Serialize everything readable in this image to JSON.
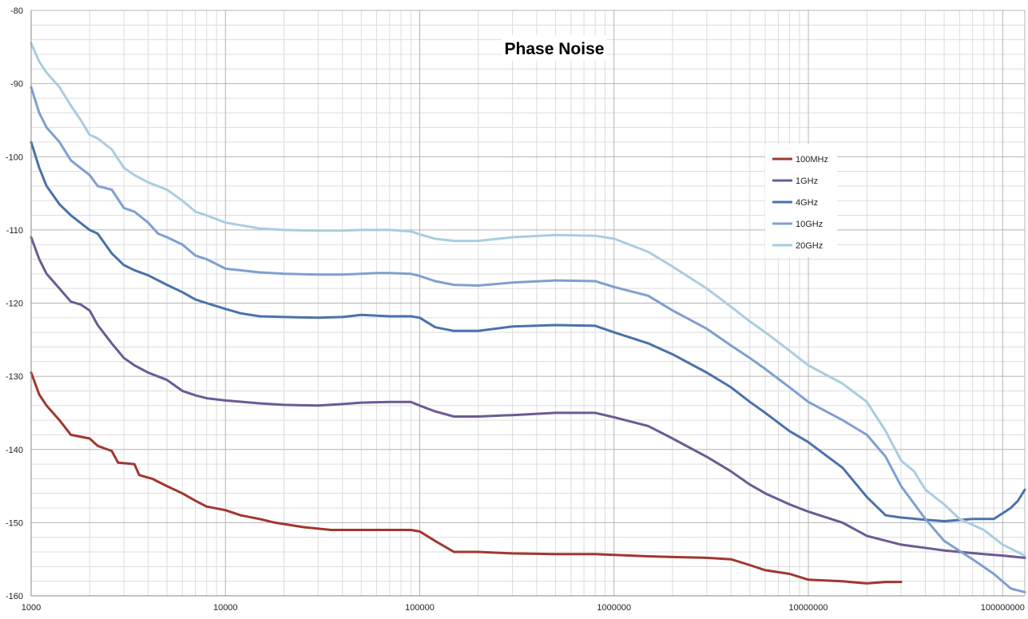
{
  "chart_data": {
    "type": "line",
    "title": "Phase Noise",
    "xlabel": "",
    "ylabel": "",
    "xscale": "log",
    "xlim": [
      1000,
      130000000
    ],
    "ylim": [
      -160,
      -80
    ],
    "x_ticks": [
      1000,
      10000,
      100000,
      1000000,
      10000000,
      100000000
    ],
    "x_tick_labels": [
      "1000",
      "10000",
      "100000",
      "1000000",
      "10000000",
      "100000000"
    ],
    "y_ticks": [
      -160,
      -150,
      -140,
      -130,
      -120,
      -110,
      -100,
      -90,
      -80
    ],
    "grid": true,
    "legend_position": "right",
    "series": [
      {
        "name": "100MHz",
        "color": "#a0372f",
        "x": [
          1000,
          1100,
          1200,
          1400,
          1600,
          2000,
          2200,
          2600,
          2800,
          3400,
          3600,
          4200,
          5000,
          6000,
          7000,
          8000,
          10000,
          12000,
          15000,
          18000,
          25000,
          35000,
          50000,
          70000,
          90000,
          100000,
          120000,
          150000,
          200000,
          300000,
          500000,
          800000,
          1000000,
          1500000,
          2000000,
          3000000,
          4000000,
          5000000,
          6000000,
          8000000,
          10000000,
          15000000,
          18000000,
          20000000,
          25000000,
          30000000
        ],
        "y": [
          -129.5,
          -132.5,
          -134,
          -136,
          -138,
          -138.5,
          -139.5,
          -140.2,
          -141.8,
          -142,
          -143.5,
          -144,
          -145,
          -146,
          -147,
          -147.8,
          -148.3,
          -149,
          -149.5,
          -150,
          -150.6,
          -151,
          -151,
          -151,
          -151,
          -151.2,
          -152.5,
          -154,
          -154,
          -154.2,
          -154.3,
          -154.3,
          -154.4,
          -154.6,
          -154.7,
          -154.8,
          -155,
          -155.8,
          -156.5,
          -157,
          -157.8,
          -158,
          -158.2,
          -158.3,
          -158.1,
          -158.1
        ]
      },
      {
        "name": "1GHz",
        "color": "#6c5a94",
        "x": [
          1000,
          1100,
          1200,
          1400,
          1600,
          1800,
          2000,
          2200,
          2600,
          3000,
          3400,
          4000,
          5000,
          6000,
          7000,
          8000,
          10000,
          15000,
          20000,
          30000,
          40000,
          50000,
          70000,
          90000,
          100000,
          120000,
          150000,
          200000,
          300000,
          500000,
          800000,
          1000000,
          1500000,
          2000000,
          3000000,
          4000000,
          5000000,
          6000000,
          8000000,
          10000000,
          15000000,
          20000000,
          30000000,
          50000000,
          80000000,
          100000000,
          130000000
        ],
        "y": [
          -111,
          -114,
          -116,
          -118,
          -119.8,
          -120.2,
          -121,
          -123,
          -125.5,
          -127.5,
          -128.5,
          -129.5,
          -130.5,
          -132,
          -132.6,
          -133,
          -133.3,
          -133.7,
          -133.9,
          -134,
          -133.8,
          -133.6,
          -133.5,
          -133.5,
          -134,
          -134.8,
          -135.5,
          -135.5,
          -135.3,
          -135,
          -135,
          -135.6,
          -136.8,
          -138.5,
          -141,
          -143,
          -144.8,
          -146,
          -147.5,
          -148.5,
          -150,
          -151.8,
          -153,
          -153.8,
          -154.3,
          -154.5,
          -154.8
        ]
      },
      {
        "name": "4GHz",
        "color": "#4a72aa",
        "x": [
          1000,
          1100,
          1200,
          1400,
          1600,
          2000,
          2200,
          2600,
          3000,
          3400,
          4000,
          5000,
          6000,
          7000,
          8000,
          10000,
          12000,
          15000,
          20000,
          30000,
          40000,
          50000,
          70000,
          90000,
          100000,
          120000,
          150000,
          200000,
          300000,
          500000,
          800000,
          1000000,
          1500000,
          2000000,
          3000000,
          4000000,
          5000000,
          6000000,
          8000000,
          10000000,
          15000000,
          20000000,
          25000000,
          30000000,
          40000000,
          50000000,
          70000000,
          90000000,
          110000000,
          120000000,
          130000000
        ],
        "y": [
          -98,
          -101.5,
          -104,
          -106.5,
          -108,
          -110,
          -110.5,
          -113.2,
          -114.8,
          -115.5,
          -116.2,
          -117.5,
          -118.5,
          -119.5,
          -120,
          -120.8,
          -121.4,
          -121.8,
          -121.9,
          -122,
          -121.9,
          -121.6,
          -121.8,
          -121.8,
          -122,
          -123.3,
          -123.8,
          -123.8,
          -123.2,
          -123,
          -123.1,
          -124,
          -125.5,
          -127,
          -129.5,
          -131.5,
          -133.5,
          -135,
          -137.5,
          -139,
          -142.5,
          -146.5,
          -149,
          -149.3,
          -149.6,
          -149.8,
          -149.5,
          -149.5,
          -148,
          -147,
          -145.5
        ]
      },
      {
        "name": "10GHz",
        "color": "#7f9fd0",
        "x": [
          1000,
          1100,
          1200,
          1400,
          1600,
          2000,
          2200,
          2600,
          3000,
          3400,
          4000,
          4500,
          5000,
          6000,
          7000,
          8000,
          10000,
          15000,
          20000,
          30000,
          40000,
          50000,
          60000,
          70000,
          90000,
          100000,
          120000,
          150000,
          200000,
          300000,
          500000,
          800000,
          1000000,
          1500000,
          2000000,
          3000000,
          4000000,
          5000000,
          6000000,
          8000000,
          10000000,
          15000000,
          20000000,
          25000000,
          30000000,
          40000000,
          50000000,
          70000000,
          90000000,
          110000000,
          130000000
        ],
        "y": [
          -90.5,
          -94,
          -96,
          -98,
          -100.5,
          -102.5,
          -104,
          -104.5,
          -107,
          -107.5,
          -109,
          -110.5,
          -111,
          -112,
          -113.5,
          -114,
          -115.3,
          -115.8,
          -116,
          -116.1,
          -116.1,
          -116,
          -115.9,
          -115.9,
          -116,
          -116.3,
          -117,
          -117.5,
          -117.6,
          -117.2,
          -116.9,
          -117,
          -117.8,
          -119,
          -121,
          -123.5,
          -125.8,
          -127.5,
          -129,
          -131.5,
          -133.5,
          -136,
          -138,
          -141,
          -145,
          -149.5,
          -152.5,
          -155,
          -157,
          -159,
          -159.5
        ]
      },
      {
        "name": "20GHz",
        "color": "#a9cde0",
        "x": [
          1000,
          1100,
          1200,
          1400,
          1600,
          1800,
          2000,
          2200,
          2600,
          3000,
          3400,
          4000,
          5000,
          6000,
          7000,
          8000,
          10000,
          15000,
          20000,
          30000,
          40000,
          50000,
          70000,
          90000,
          100000,
          120000,
          150000,
          200000,
          300000,
          500000,
          800000,
          1000000,
          1500000,
          2000000,
          3000000,
          4000000,
          5000000,
          6000000,
          8000000,
          10000000,
          15000000,
          20000000,
          25000000,
          30000000,
          35000000,
          40000000,
          50000000,
          60000000,
          80000000,
          100000000,
          130000000
        ],
        "y": [
          -84.5,
          -87,
          -88.5,
          -90.5,
          -93,
          -95,
          -97,
          -97.5,
          -99,
          -101.5,
          -102.5,
          -103.5,
          -104.5,
          -106,
          -107.5,
          -108,
          -109,
          -109.8,
          -110,
          -110.1,
          -110.1,
          -110,
          -110,
          -110.2,
          -110.6,
          -111.2,
          -111.5,
          -111.5,
          -111,
          -110.7,
          -110.8,
          -111.2,
          -113,
          -115,
          -118,
          -120.5,
          -122.5,
          -124,
          -126.5,
          -128.5,
          -131,
          -133.5,
          -137.5,
          -141.5,
          -143,
          -145.5,
          -147.5,
          -149.5,
          -151,
          -153,
          -154.5
        ]
      }
    ]
  }
}
